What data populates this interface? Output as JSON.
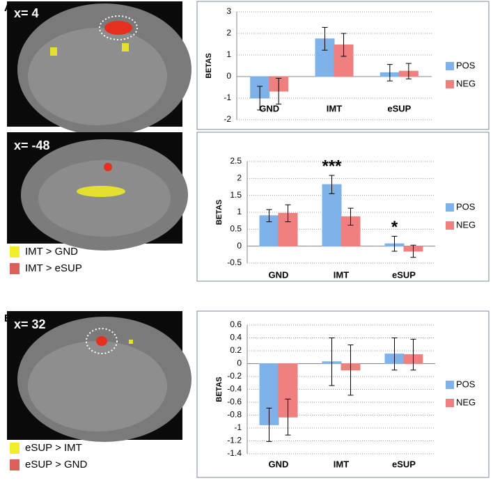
{
  "figure": {
    "panel_labels": [
      "A",
      "B"
    ],
    "image_labels": [
      "x= 4",
      "x= -48",
      "x= 32"
    ],
    "legend_a": [
      {
        "label": "IMT > GND",
        "color": "#f2ee2a"
      },
      {
        "label": "IMT > eSUP",
        "color": "#d9615a"
      }
    ],
    "legend_b": [
      {
        "label": "eSUP > IMT",
        "color": "#f2ee2a"
      },
      {
        "label": "eSUP > GND",
        "color": "#d9615a"
      }
    ]
  },
  "chart_data": [
    {
      "type": "bar",
      "ylabel": "BETAS",
      "categories": [
        "GND",
        "IMT",
        "eSUP"
      ],
      "series": [
        {
          "name": "POS",
          "color": "#7fb2e8",
          "values": [
            -1.0,
            1.75,
            0.18
          ],
          "errors": [
            0.55,
            0.53,
            0.38
          ]
        },
        {
          "name": "NEG",
          "color": "#ee8080",
          "values": [
            -0.68,
            1.47,
            0.25
          ],
          "errors": [
            0.6,
            0.53,
            0.36
          ]
        }
      ],
      "ylim": [
        -2,
        3
      ],
      "yticks": [
        -2,
        -1,
        0,
        1,
        2,
        3
      ],
      "grid": true,
      "legend": "right"
    },
    {
      "type": "bar",
      "ylabel": "BETAS",
      "categories": [
        "GND",
        "IMT",
        "eSUP"
      ],
      "series": [
        {
          "name": "POS",
          "color": "#7fb2e8",
          "values": [
            0.9,
            1.82,
            0.07
          ],
          "errors": [
            0.18,
            0.27,
            0.22
          ]
        },
        {
          "name": "NEG",
          "color": "#ee8080",
          "values": [
            0.97,
            0.87,
            -0.15
          ],
          "errors": [
            0.25,
            0.25,
            0.18
          ]
        }
      ],
      "ylim": [
        -0.5,
        2.5
      ],
      "yticks": [
        -0.5,
        0,
        0.5,
        1,
        1.5,
        2,
        2.5
      ],
      "grid": true,
      "legend": "right",
      "annotations": [
        {
          "text": "***",
          "category": "IMT"
        },
        {
          "text": "*",
          "category": "eSUP"
        }
      ]
    },
    {
      "type": "bar",
      "ylabel": "BETAS",
      "categories": [
        "GND",
        "IMT",
        "eSUP"
      ],
      "series": [
        {
          "name": "POS",
          "color": "#7fb2e8",
          "values": [
            -0.95,
            0.03,
            0.15
          ],
          "errors": [
            0.26,
            0.37,
            0.25
          ]
        },
        {
          "name": "NEG",
          "color": "#ee8080",
          "values": [
            -0.83,
            -0.1,
            0.14
          ],
          "errors": [
            0.28,
            0.39,
            0.24
          ]
        }
      ],
      "ylim": [
        -1.4,
        0.6
      ],
      "yticks": [
        -1.4,
        -1.2,
        -1,
        -0.8,
        -0.6,
        -0.4,
        -0.2,
        0,
        0.2,
        0.4,
        0.6
      ],
      "grid": true,
      "legend": "right"
    }
  ]
}
